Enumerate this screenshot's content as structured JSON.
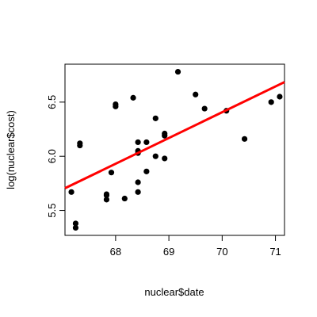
{
  "chart_data": {
    "type": "scatter",
    "xlabel": "nuclear$date",
    "ylabel": "log(nuclear$cost)",
    "xlim": [
      67.05,
      71.17
    ],
    "ylim": [
      5.27,
      6.85
    ],
    "x_ticks": [
      68,
      69,
      70,
      71
    ],
    "y_ticks": [
      5.5,
      6.0,
      6.5
    ],
    "x_tick_labels": [
      "68",
      "69",
      "70",
      "71"
    ],
    "y_tick_labels": [
      "5.5",
      "6.0",
      "6.5"
    ],
    "grid": false,
    "point_color": "#000000",
    "points": [
      {
        "x": 67.17,
        "y": 5.67
      },
      {
        "x": 67.25,
        "y": 5.38
      },
      {
        "x": 67.25,
        "y": 5.34
      },
      {
        "x": 67.33,
        "y": 6.12
      },
      {
        "x": 67.33,
        "y": 6.1
      },
      {
        "x": 67.83,
        "y": 5.65
      },
      {
        "x": 67.83,
        "y": 5.64
      },
      {
        "x": 67.83,
        "y": 5.6
      },
      {
        "x": 67.92,
        "y": 5.85
      },
      {
        "x": 68.0,
        "y": 6.48
      },
      {
        "x": 68.0,
        "y": 6.46
      },
      {
        "x": 68.17,
        "y": 5.61
      },
      {
        "x": 68.33,
        "y": 6.54
      },
      {
        "x": 68.42,
        "y": 6.13
      },
      {
        "x": 68.42,
        "y": 6.05
      },
      {
        "x": 68.42,
        "y": 6.03
      },
      {
        "x": 68.42,
        "y": 5.76
      },
      {
        "x": 68.42,
        "y": 5.67
      },
      {
        "x": 68.58,
        "y": 6.13
      },
      {
        "x": 68.58,
        "y": 5.86
      },
      {
        "x": 68.75,
        "y": 6.35
      },
      {
        "x": 68.75,
        "y": 6.0
      },
      {
        "x": 68.92,
        "y": 6.21
      },
      {
        "x": 68.92,
        "y": 6.19
      },
      {
        "x": 68.92,
        "y": 5.98
      },
      {
        "x": 69.17,
        "y": 6.78
      },
      {
        "x": 69.5,
        "y": 6.57
      },
      {
        "x": 69.67,
        "y": 6.44
      },
      {
        "x": 70.08,
        "y": 6.42
      },
      {
        "x": 70.42,
        "y": 6.16
      },
      {
        "x": 70.92,
        "y": 6.5
      },
      {
        "x": 71.08,
        "y": 6.55
      }
    ],
    "fit_line": {
      "color": "#ff0000",
      "x": [
        67.05,
        71.17
      ],
      "y": [
        5.705,
        6.685
      ]
    }
  }
}
